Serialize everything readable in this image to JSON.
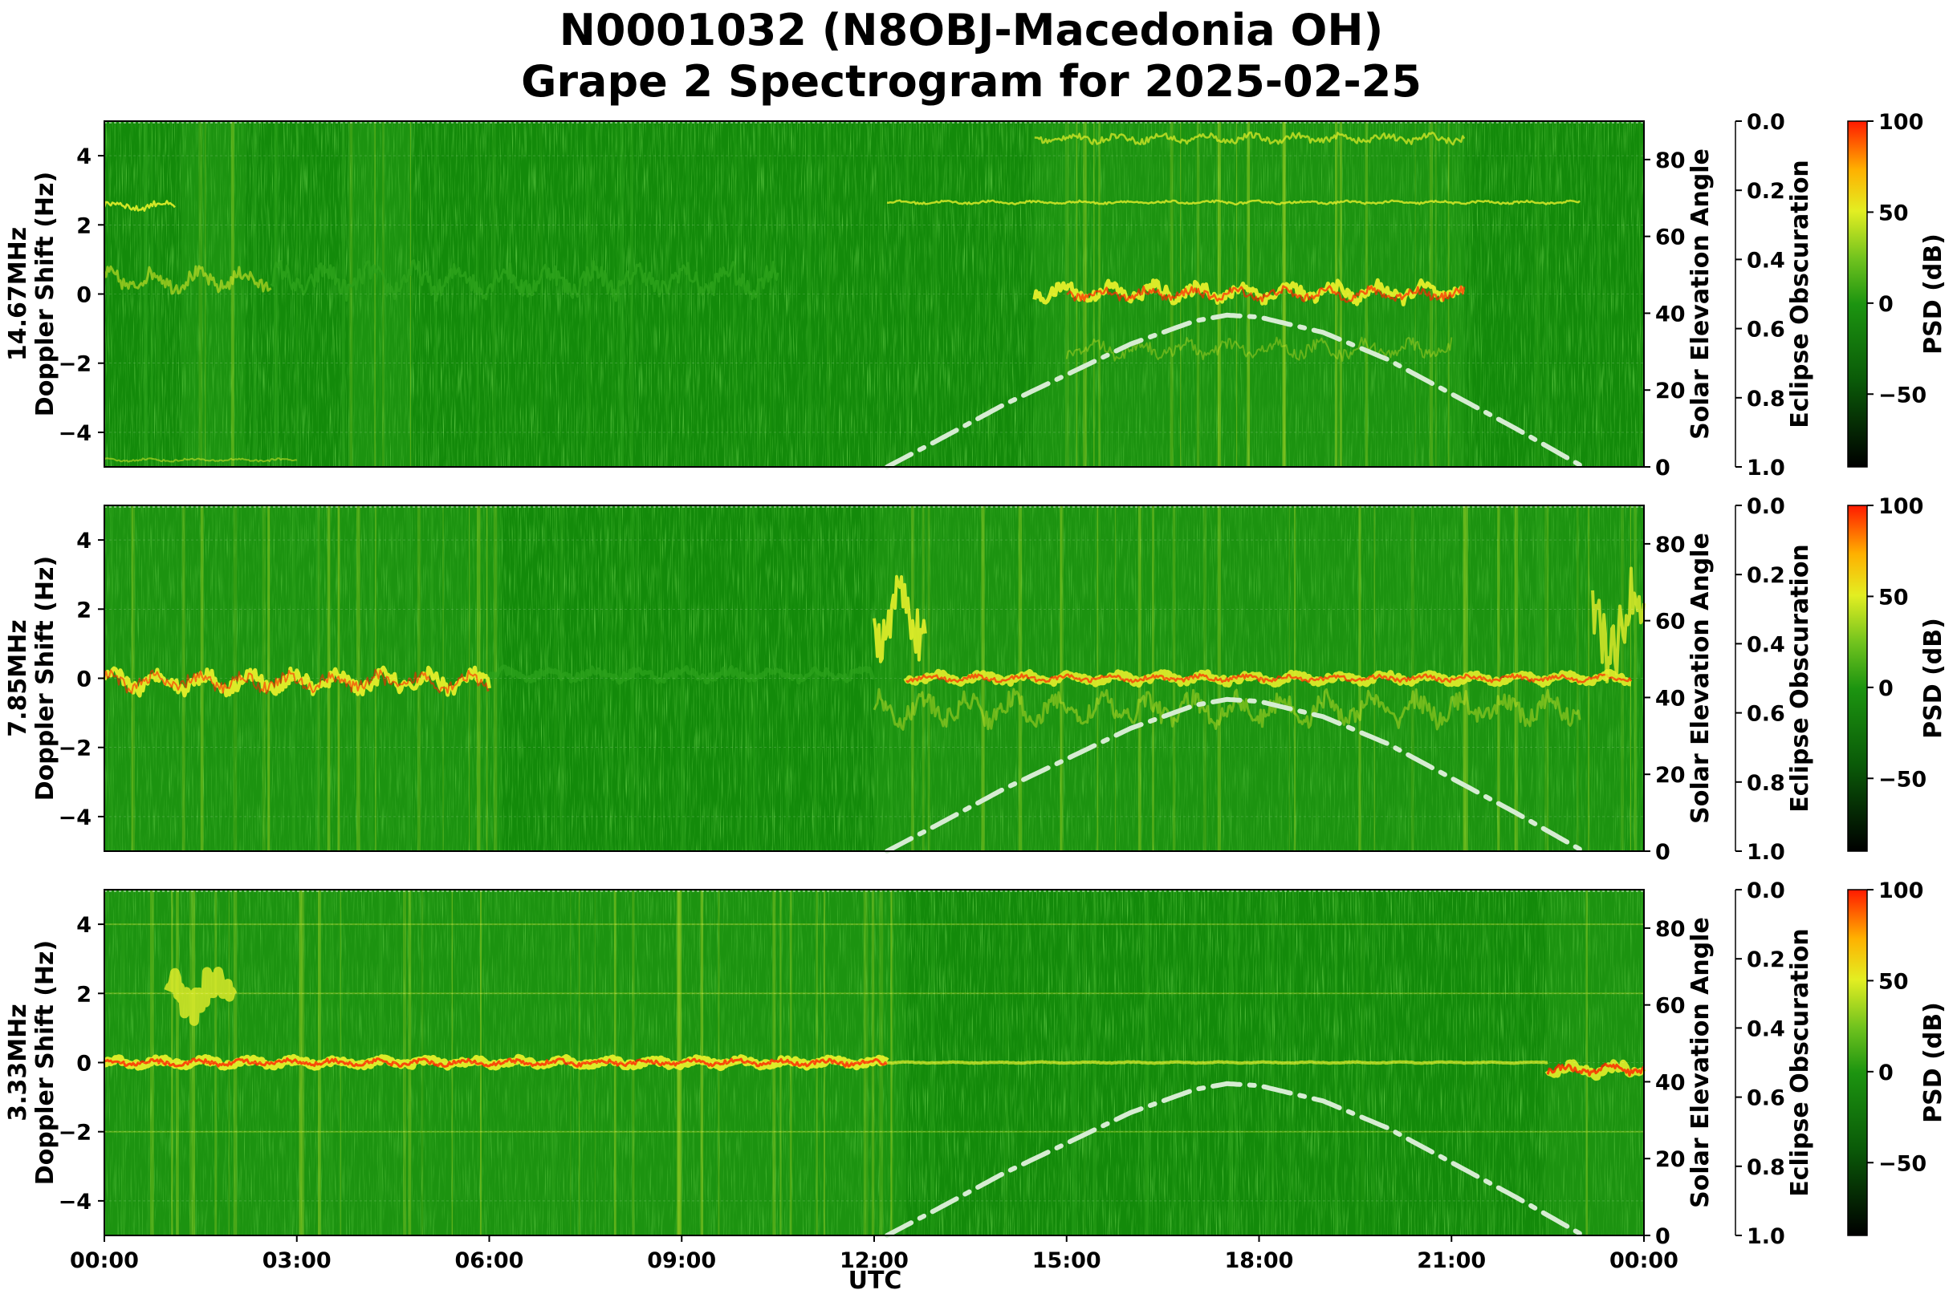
{
  "title": {
    "line1": "N0001032 (N8OBJ-Macedonia OH)",
    "line2": "Grape 2 Spectrogram for 2025-02-25"
  },
  "x_axis": {
    "label": "UTC",
    "ticks": [
      "00:00",
      "03:00",
      "06:00",
      "09:00",
      "12:00",
      "15:00",
      "18:00",
      "21:00",
      "00:00"
    ]
  },
  "axes_labels": {
    "right1": "Solar Elevation Angle",
    "right2": "Eclipse Obscuration",
    "colorbar": "PSD (dB)"
  },
  "colors": {
    "background_green": "#138a0a",
    "mid_green": "#2ea31c",
    "signal_yellow": "#e6ef2a",
    "peak_red": "#ff2200",
    "solar_curve": "#d6ecd2"
  },
  "chart_data": [
    {
      "type": "heatmap",
      "frequency_label": "14.67MHz",
      "ylabel": "Doppler Shift (Hz)",
      "ylim": [
        -5,
        5
      ],
      "yticks": [
        "4",
        "2",
        "0",
        "−2",
        "−4"
      ],
      "xlim_hours": [
        0,
        24
      ],
      "solar_elevation_ylim": [
        0,
        90
      ],
      "solar_elevation_ticks": [
        "80",
        "60",
        "40",
        "20",
        "0"
      ],
      "eclipse_obscuration_ylim": [
        0.0,
        1.0
      ],
      "eclipse_ticks": [
        "0.0",
        "0.2",
        "0.4",
        "0.6",
        "0.8",
        "1.0"
      ],
      "colorbar_range": [
        -90,
        100
      ],
      "colorbar_ticks": [
        "100",
        "50",
        "0",
        "−50"
      ],
      "solar_elevation": {
        "hours": [
          12.2,
          13,
          14,
          15,
          16,
          17,
          17.5,
          18,
          19,
          20,
          21,
          22,
          23,
          23.1
        ],
        "degrees": [
          0,
          7,
          16,
          24,
          32,
          38,
          39.5,
          39,
          35,
          28,
          19,
          10,
          0.5,
          0
        ]
      }
    },
    {
      "type": "heatmap",
      "frequency_label": "7.85MHz",
      "ylabel": "Doppler Shift (Hz)",
      "ylim": [
        -5,
        5
      ],
      "yticks": [
        "4",
        "2",
        "0",
        "−2",
        "−4"
      ],
      "xlim_hours": [
        0,
        24
      ],
      "solar_elevation_ylim": [
        0,
        90
      ],
      "solar_elevation_ticks": [
        "80",
        "60",
        "40",
        "20",
        "0"
      ],
      "eclipse_obscuration_ylim": [
        0.0,
        1.0
      ],
      "eclipse_ticks": [
        "0.0",
        "0.2",
        "0.4",
        "0.6",
        "0.8",
        "1.0"
      ],
      "colorbar_range": [
        -90,
        100
      ],
      "colorbar_ticks": [
        "100",
        "50",
        "0",
        "−50"
      ],
      "solar_elevation": {
        "hours": [
          12.2,
          13,
          14,
          15,
          16,
          17,
          17.5,
          18,
          19,
          20,
          21,
          22,
          23,
          23.1
        ],
        "degrees": [
          0,
          7,
          16,
          24,
          32,
          38,
          39.5,
          39,
          35,
          28,
          19,
          10,
          0.5,
          0
        ]
      }
    },
    {
      "type": "heatmap",
      "frequency_label": "3.33MHz",
      "ylabel": "Doppler Shift (Hz)",
      "ylim": [
        -5,
        5
      ],
      "yticks": [
        "4",
        "2",
        "0",
        "−2",
        "−4"
      ],
      "xlim_hours": [
        0,
        24
      ],
      "solar_elevation_ylim": [
        0,
        90
      ],
      "solar_elevation_ticks": [
        "80",
        "60",
        "40",
        "20",
        "0"
      ],
      "eclipse_obscuration_ylim": [
        0.0,
        1.0
      ],
      "eclipse_ticks": [
        "0.0",
        "0.2",
        "0.4",
        "0.6",
        "0.8",
        "1.0"
      ],
      "colorbar_range": [
        -90,
        100
      ],
      "colorbar_ticks": [
        "100",
        "50",
        "0",
        "−50"
      ],
      "solar_elevation": {
        "hours": [
          12.2,
          13,
          14,
          15,
          16,
          17,
          17.5,
          18,
          19,
          20,
          21,
          22,
          23,
          23.1
        ],
        "degrees": [
          0,
          7,
          16,
          24,
          32,
          38,
          39.5,
          39,
          35,
          28,
          19,
          10,
          0.5,
          0
        ]
      }
    }
  ]
}
